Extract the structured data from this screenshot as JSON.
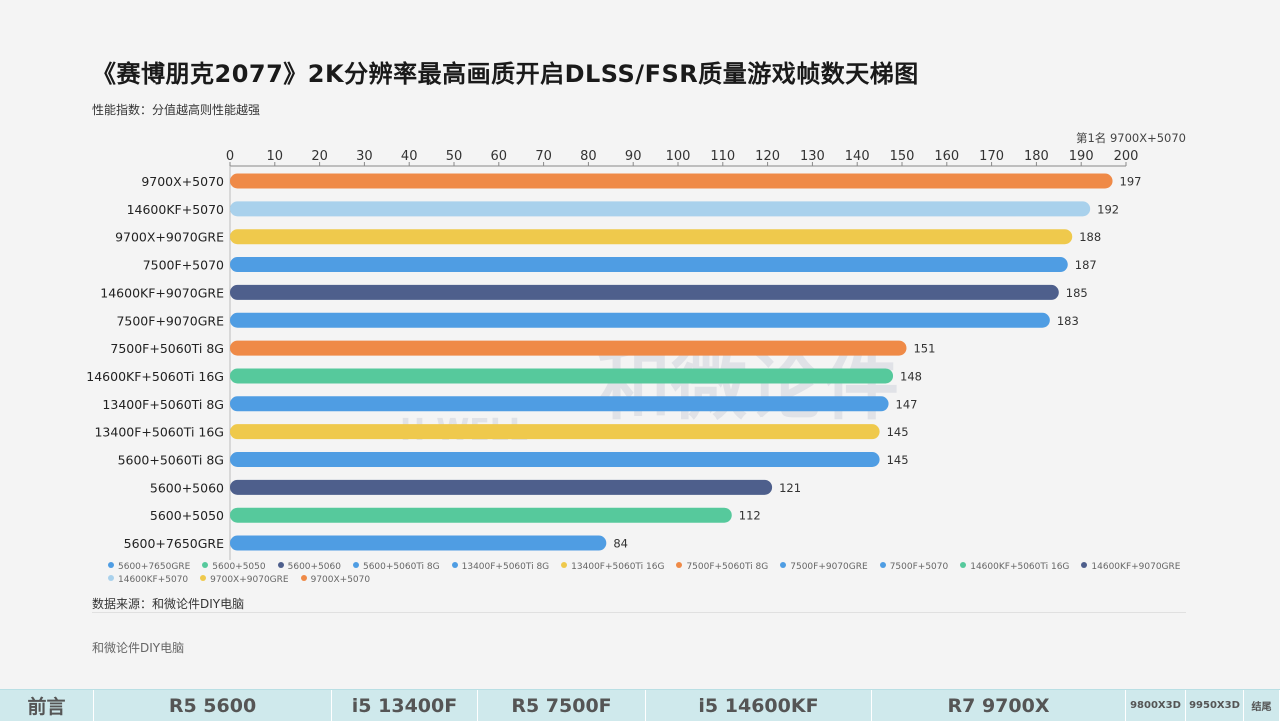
{
  "title": "《赛博朋克2077》2K分辨率最高画质开启DLSS/FSR质量游戏帧数天梯图",
  "subtitle": "性能指数：分值越高则性能越强",
  "rank1_label": "第1名 9700X+5070",
  "source": "数据来源：和微论件DIY电脑",
  "footer_brand": "和微论件DIY电脑",
  "watermark_text": "和微论件",
  "watermark_sub": "H-WELL",
  "chart_data": {
    "type": "bar",
    "orientation": "horizontal",
    "title": "《赛博朋克2077》2K分辨率最高画质开启DLSS/FSR质量游戏帧数天梯图",
    "subtitle": "性能指数：分值越高则性能越强",
    "xlim": [
      0,
      200
    ],
    "x_ticks": [
      0,
      10,
      20,
      30,
      40,
      50,
      60,
      70,
      80,
      90,
      100,
      110,
      120,
      130,
      140,
      150,
      160,
      170,
      180,
      190,
      200
    ],
    "x_axis_position": "top",
    "grid": false,
    "legend_position": "bottom",
    "categories": [
      "9700X+5070",
      "14600KF+5070",
      "9700X+9070GRE",
      "7500F+5070",
      "14600KF+9070GRE",
      "7500F+9070GRE",
      "7500F+5060Ti 8G",
      "14600KF+5060Ti 16G",
      "13400F+5060Ti 8G",
      "13400F+5060Ti 16G",
      "5600+5060Ti 8G",
      "5600+5060",
      "5600+5050",
      "5600+7650GRE"
    ],
    "values": [
      197,
      192,
      188,
      187,
      185,
      183,
      151,
      148,
      147,
      145,
      145,
      121,
      112,
      84
    ],
    "colors": [
      "#ef8a47",
      "#a9d1ec",
      "#efc94c",
      "#4f9de3",
      "#4e5f8c",
      "#4f9de3",
      "#ef8a47",
      "#56c99c",
      "#4f9de3",
      "#efc94c",
      "#4f9de3",
      "#4e5f8c",
      "#56c99c",
      "#4f9de3"
    ],
    "legend": [
      {
        "label": "5600+7650GRE",
        "color": "#4f9de3"
      },
      {
        "label": "5600+5050",
        "color": "#56c99c"
      },
      {
        "label": "5600+5060",
        "color": "#4e5f8c"
      },
      {
        "label": "5600+5060Ti 8G",
        "color": "#4f9de3"
      },
      {
        "label": "13400F+5060Ti 8G",
        "color": "#4f9de3"
      },
      {
        "label": "13400F+5060Ti 16G",
        "color": "#efc94c"
      },
      {
        "label": "7500F+5060Ti 8G",
        "color": "#ef8a47"
      },
      {
        "label": "7500F+9070GRE",
        "color": "#4f9de3"
      },
      {
        "label": "7500F+5070",
        "color": "#4f9de3"
      },
      {
        "label": "14600KF+5060Ti 16G",
        "color": "#56c99c"
      },
      {
        "label": "14600KF+9070GRE",
        "color": "#4e5f8c"
      },
      {
        "label": "14600KF+5070",
        "color": "#a9d1ec"
      },
      {
        "label": "9700X+9070GRE",
        "color": "#efc94c"
      },
      {
        "label": "9700X+5070",
        "color": "#ef8a47"
      }
    ]
  },
  "nav": {
    "items": [
      {
        "label": "前言",
        "w": 94
      },
      {
        "label": "R5 5600",
        "w": 238
      },
      {
        "label": "i5 13400F",
        "w": 146
      },
      {
        "label": "R5 7500F",
        "w": 168
      },
      {
        "label": "i5 14600KF",
        "w": 226
      },
      {
        "label": "R7 9700X",
        "w": 254
      },
      {
        "label": "9800X3D",
        "w": 60,
        "small": true
      },
      {
        "label": "9950X3D",
        "w": 58,
        "small": true
      },
      {
        "label": "结尾",
        "w": 36,
        "small": true
      }
    ]
  }
}
